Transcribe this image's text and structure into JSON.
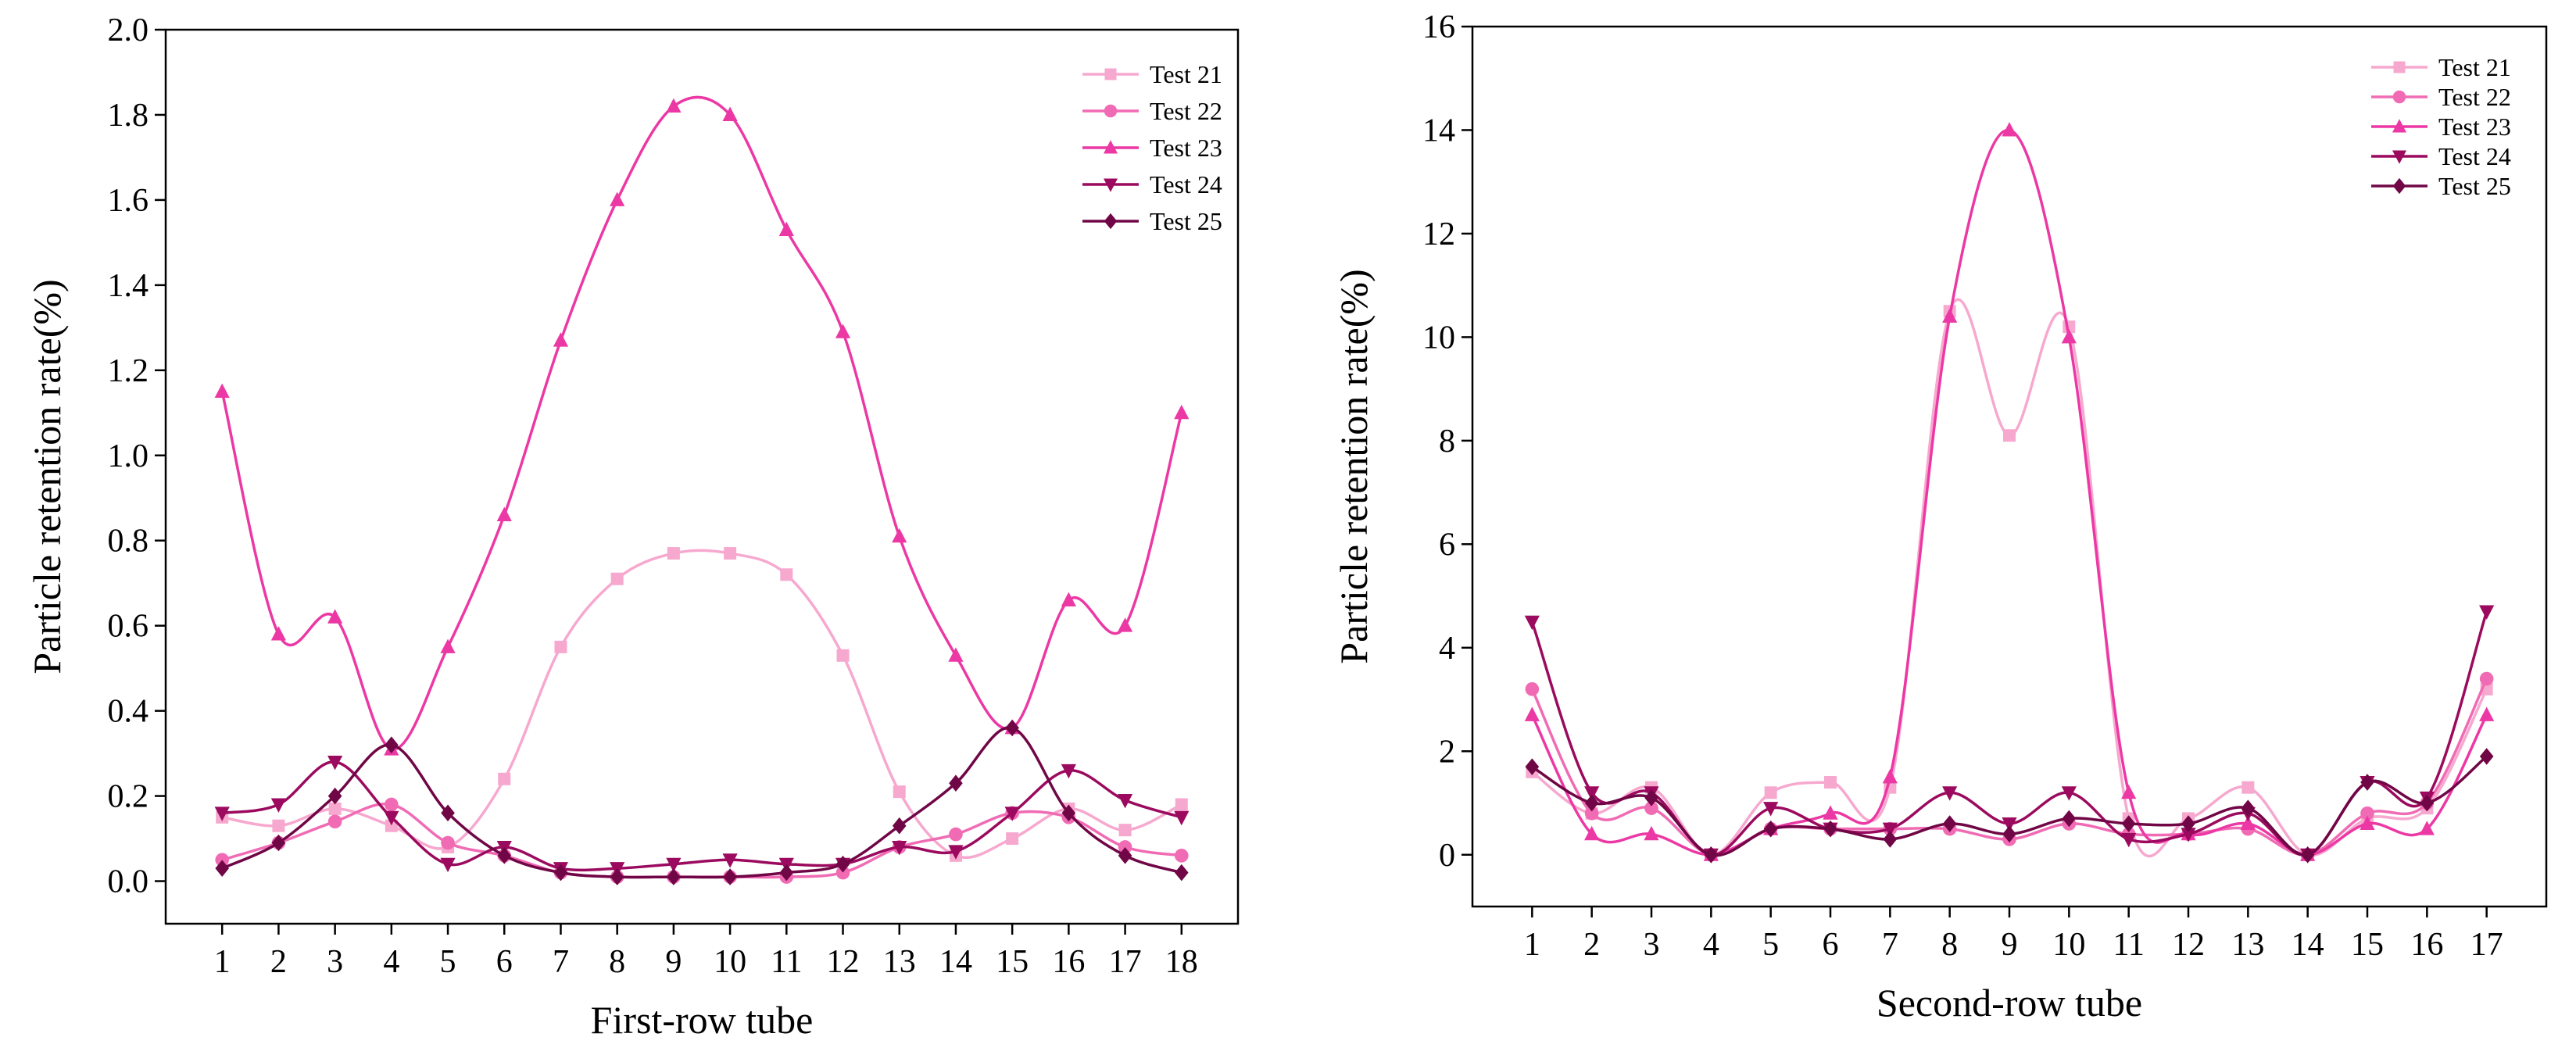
{
  "colors": {
    "test21": "#f7a8cf",
    "test22": "#f06bb4",
    "test23": "#ec38a4",
    "test24": "#9b0a5e",
    "test25": "#700646"
  },
  "chart_data": [
    {
      "type": "line",
      "title": "",
      "xlabel": "First-row tube",
      "ylabel": "Particle retention rate(%)",
      "ylim": [
        -0.1,
        2.0
      ],
      "yticks": [
        0.0,
        0.2,
        0.4,
        0.6,
        0.8,
        1.0,
        1.2,
        1.4,
        1.6,
        1.8,
        2.0
      ],
      "ytick_labels": [
        "0.0",
        "0.2",
        "0.4",
        "0.6",
        "0.8",
        "1.0",
        "1.2",
        "1.4",
        "1.6",
        "1.8",
        "2.0"
      ],
      "xlim": [
        0,
        19
      ],
      "x": [
        1,
        2,
        3,
        4,
        5,
        6,
        7,
        8,
        9,
        10,
        11,
        12,
        13,
        14,
        15,
        16,
        17,
        18
      ],
      "x_labels": [
        "1",
        "2",
        "3",
        "4",
        "5",
        "6",
        "7",
        "8",
        "9",
        "10",
        "11",
        "12",
        "13",
        "14",
        "15",
        "16",
        "17",
        "18"
      ],
      "legend_position": "top-right",
      "series": [
        {
          "name": "Test 21",
          "marker": "square",
          "color_key": "test21",
          "values": [
            0.15,
            0.13,
            0.17,
            0.13,
            0.08,
            0.24,
            0.55,
            0.71,
            0.77,
            0.77,
            0.72,
            0.53,
            0.21,
            0.06,
            0.1,
            0.17,
            0.12,
            0.18
          ]
        },
        {
          "name": "Test 22",
          "marker": "circle",
          "color_key": "test22",
          "values": [
            0.05,
            0.09,
            0.14,
            0.18,
            0.09,
            0.06,
            0.02,
            0.01,
            0.01,
            0.01,
            0.01,
            0.02,
            0.08,
            0.11,
            0.16,
            0.15,
            0.08,
            0.06
          ]
        },
        {
          "name": "Test 23",
          "marker": "triangle-up",
          "color_key": "test23",
          "values": [
            1.15,
            0.58,
            0.62,
            0.31,
            0.55,
            0.86,
            1.27,
            1.6,
            1.82,
            1.8,
            1.53,
            1.29,
            0.81,
            0.53,
            0.36,
            0.66,
            0.6,
            1.1
          ]
        },
        {
          "name": "Test 24",
          "marker": "triangle-down",
          "color_key": "test24",
          "values": [
            0.16,
            0.18,
            0.28,
            0.15,
            0.04,
            0.08,
            0.03,
            0.03,
            0.04,
            0.05,
            0.04,
            0.04,
            0.08,
            0.07,
            0.16,
            0.26,
            0.19,
            0.15
          ]
        },
        {
          "name": "Test 25",
          "marker": "diamond",
          "color_key": "test25",
          "values": [
            0.03,
            0.09,
            0.2,
            0.32,
            0.16,
            0.06,
            0.02,
            0.01,
            0.01,
            0.01,
            0.02,
            0.04,
            0.13,
            0.23,
            0.36,
            0.16,
            0.06,
            0.02
          ]
        }
      ]
    },
    {
      "type": "line",
      "title": "",
      "xlabel": "Second-row tube",
      "ylabel": "Particle retention rate(%)",
      "ylim": [
        -1,
        16
      ],
      "yticks": [
        0,
        2,
        4,
        6,
        8,
        10,
        12,
        14,
        16
      ],
      "ytick_labels": [
        "0",
        "2",
        "4",
        "6",
        "8",
        "10",
        "12",
        "14",
        "16"
      ],
      "xlim": [
        0,
        18
      ],
      "x": [
        1,
        2,
        3,
        4,
        5,
        6,
        7,
        8,
        9,
        10,
        11,
        12,
        13,
        14,
        15,
        16,
        17
      ],
      "x_labels": [
        "1",
        "2",
        "3",
        "4",
        "5",
        "6",
        "7",
        "8",
        "9",
        "10",
        "11",
        "12",
        "13",
        "14",
        "15",
        "16",
        "17"
      ],
      "legend_position": "top-right",
      "series": [
        {
          "name": "Test 21",
          "marker": "square",
          "color_key": "test21",
          "values": [
            1.6,
            0.8,
            1.3,
            0.0,
            1.2,
            1.4,
            1.3,
            10.5,
            8.1,
            10.2,
            0.7,
            0.7,
            1.3,
            0.0,
            0.7,
            0.9,
            3.2
          ]
        },
        {
          "name": "Test 22",
          "marker": "circle",
          "color_key": "test22",
          "values": [
            3.2,
            0.8,
            0.9,
            0.0,
            0.5,
            0.5,
            0.5,
            0.5,
            0.3,
            0.6,
            0.4,
            0.4,
            0.5,
            0.0,
            0.8,
            1.0,
            3.4
          ]
        },
        {
          "name": "Test 23",
          "marker": "triangle-up",
          "color_key": "test23",
          "values": [
            2.7,
            0.4,
            0.4,
            0.0,
            0.5,
            0.8,
            1.5,
            10.4,
            14.0,
            10.0,
            1.2,
            0.4,
            0.6,
            0.0,
            0.6,
            0.5,
            2.7
          ]
        },
        {
          "name": "Test 24",
          "marker": "triangle-down",
          "color_key": "test24",
          "values": [
            4.5,
            1.2,
            1.2,
            0.0,
            0.9,
            0.5,
            0.5,
            1.2,
            0.6,
            1.2,
            0.3,
            0.4,
            0.8,
            0.0,
            1.4,
            1.1,
            4.7
          ]
        },
        {
          "name": "Test 25",
          "marker": "diamond",
          "color_key": "test25",
          "values": [
            1.7,
            1.0,
            1.1,
            0.0,
            0.5,
            0.5,
            0.3,
            0.6,
            0.4,
            0.7,
            0.6,
            0.6,
            0.9,
            0.0,
            1.4,
            1.0,
            1.9
          ]
        }
      ]
    }
  ]
}
